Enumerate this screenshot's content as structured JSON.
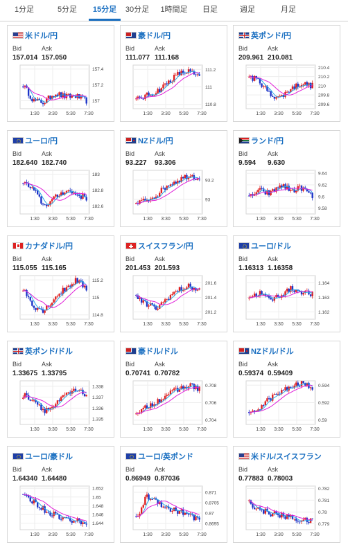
{
  "tabs": [
    {
      "label": "1分足",
      "active": false
    },
    {
      "label": "5分足",
      "active": false
    },
    {
      "label": "15分足",
      "active": true
    },
    {
      "label": "30分足",
      "active": false
    },
    {
      "label": "1時間足",
      "active": false
    },
    {
      "label": "日足",
      "active": false
    },
    {
      "label": "週足",
      "active": false
    },
    {
      "label": "月足",
      "active": false
    }
  ],
  "labels": {
    "bid": "Bid",
    "ask": "Ask"
  },
  "colors": {
    "up": "#e02020",
    "down": "#1c34c8",
    "ma_short": "#2aa7e6",
    "ma_long": "#e020d8",
    "accent": "#1a6fc1"
  },
  "x_ticks": [
    "1:30",
    "3:30",
    "5:30",
    "7:30"
  ],
  "cards": [
    {
      "name": "米ドル/円",
      "flag": "us",
      "bid": "157.014",
      "ask": "157.050",
      "ticks": [
        "157.4",
        "157.2",
        "157"
      ],
      "yrange": [
        156.9,
        157.45
      ],
      "trend": [
        157.2,
        157.0,
        156.98,
        157.1,
        157.05,
        157.06,
        157.0
      ]
    },
    {
      "name": "豪ドル/円",
      "flag": "au",
      "bid": "111.077",
      "ask": "111.168",
      "ticks": [
        "111.2",
        "111",
        "110.8"
      ],
      "yrange": [
        110.75,
        111.25
      ],
      "trend": [
        110.85,
        110.9,
        110.95,
        111.05,
        111.15,
        111.18,
        111.1
      ]
    },
    {
      "name": "英ポンド/円",
      "flag": "gb",
      "bid": "209.961",
      "ask": "210.081",
      "ticks": [
        "210.4",
        "210.2",
        "210",
        "209.8",
        "209.6"
      ],
      "yrange": [
        209.5,
        210.45
      ],
      "trend": [
        210.2,
        210.1,
        209.8,
        209.75,
        209.95,
        210.05,
        210.0
      ]
    },
    {
      "name": "ユーロ/円",
      "flag": "eu",
      "bid": "182.640",
      "ask": "182.740",
      "ticks": [
        "183",
        "182.8",
        "182.6"
      ],
      "yrange": [
        182.5,
        183.05
      ],
      "trend": [
        182.9,
        182.8,
        182.6,
        182.7,
        182.8,
        182.75,
        182.7
      ]
    },
    {
      "name": "NZドル/円",
      "flag": "nz",
      "bid": "93.227",
      "ask": "93.306",
      "ticks": [
        "93.2",
        "93"
      ],
      "yrange": [
        92.85,
        93.3
      ],
      "trend": [
        92.95,
        93.0,
        93.05,
        93.15,
        93.2,
        93.25,
        93.22
      ]
    },
    {
      "name": "ランド/円",
      "flag": "za",
      "bid": "9.594",
      "ask": "9.630",
      "ticks": [
        "9.64",
        "9.62",
        "9.6",
        "9.58"
      ],
      "yrange": [
        9.57,
        9.645
      ],
      "trend": [
        9.6,
        9.61,
        9.605,
        9.62,
        9.61,
        9.615,
        9.6
      ]
    },
    {
      "name": "カナダドル/円",
      "flag": "ca",
      "bid": "115.055",
      "ask": "115.165",
      "ticks": [
        "115.2",
        "115",
        "114.8"
      ],
      "yrange": [
        114.75,
        115.25
      ],
      "trend": [
        115.1,
        114.9,
        114.85,
        115.0,
        115.1,
        115.2,
        115.1
      ]
    },
    {
      "name": "スイスフラン/円",
      "flag": "ch",
      "bid": "201.453",
      "ask": "201.593",
      "ticks": [
        "201.6",
        "201.4",
        "201.2"
      ],
      "yrange": [
        201.1,
        201.7
      ],
      "trend": [
        201.4,
        201.3,
        201.25,
        201.4,
        201.5,
        201.55,
        201.5
      ]
    },
    {
      "name": "ユーロ/ドル",
      "flag": "eu",
      "bid": "1.16313",
      "ask": "1.16358",
      "ticks": [
        "1.164",
        "1.163",
        "1.162"
      ],
      "yrange": [
        1.1615,
        1.1645
      ],
      "trend": [
        1.163,
        1.1633,
        1.1628,
        1.1632,
        1.1636,
        1.1634,
        1.1632
      ]
    },
    {
      "name": "英ポンド/ドル",
      "flag": "gb",
      "bid": "1.33675",
      "ask": "1.33795",
      "ticks": [
        "1.338",
        "1.337",
        "1.336",
        "1.335"
      ],
      "yrange": [
        1.3345,
        1.3385
      ],
      "trend": [
        1.3372,
        1.3368,
        1.3358,
        1.3362,
        1.3372,
        1.3376,
        1.3372
      ]
    },
    {
      "name": "豪ドル/ドル",
      "flag": "au",
      "bid": "0.70741",
      "ask": "0.70782",
      "ticks": [
        "0.708",
        "0.706",
        "0.704"
      ],
      "yrange": [
        0.7035,
        0.7085
      ],
      "trend": [
        0.7045,
        0.7055,
        0.7062,
        0.707,
        0.7075,
        0.708,
        0.7076
      ]
    },
    {
      "name": "NZドル/ドル",
      "flag": "nz",
      "bid": "0.59374",
      "ask": "0.59409",
      "ticks": [
        "0.594",
        "0.592",
        "0.59"
      ],
      "yrange": [
        0.5895,
        0.5945
      ],
      "trend": [
        0.5905,
        0.5915,
        0.5925,
        0.5932,
        0.5938,
        0.5942,
        0.5938
      ]
    },
    {
      "name": "ユーロ/豪ドル",
      "flag": "eu",
      "bid": "1.64340",
      "ask": "1.64480",
      "ticks": [
        "1.652",
        "1.65",
        "1.648",
        "1.646",
        "1.644"
      ],
      "yrange": [
        1.6425,
        1.6525
      ],
      "trend": [
        1.65,
        1.649,
        1.647,
        1.646,
        1.645,
        1.6445,
        1.6443
      ]
    },
    {
      "name": "ユーロ/英ポンド",
      "flag": "eu",
      "bid": "0.86949",
      "ask": "0.87036",
      "ticks": [
        "0.871",
        "0.8705",
        "0.87",
        "0.8695"
      ],
      "yrange": [
        0.8692,
        0.8713
      ],
      "trend": [
        0.8697,
        0.8708,
        0.8706,
        0.8702,
        0.8701,
        0.8699,
        0.8697
      ]
    },
    {
      "name": "米ドル/スイスフラン",
      "flag": "us",
      "bid": "0.77883",
      "ask": "0.78003",
      "ticks": [
        "0.782",
        "0.781",
        "0.78",
        "0.779"
      ],
      "yrange": [
        0.7785,
        0.7822
      ],
      "trend": [
        0.7808,
        0.7802,
        0.7799,
        0.7797,
        0.7795,
        0.7793,
        0.7792
      ]
    }
  ]
}
